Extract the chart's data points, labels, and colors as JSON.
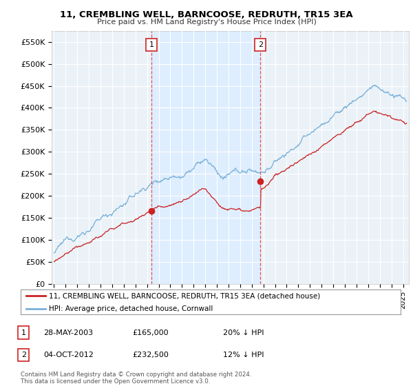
{
  "title": "11, CREMBLING WELL, BARNCOOSE, REDRUTH, TR15 3EA",
  "subtitle": "Price paid vs. HM Land Registry's House Price Index (HPI)",
  "ylabel_ticks": [
    "£0",
    "£50K",
    "£100K",
    "£150K",
    "£200K",
    "£250K",
    "£300K",
    "£350K",
    "£400K",
    "£450K",
    "£500K",
    "£550K"
  ],
  "ytick_values": [
    0,
    50000,
    100000,
    150000,
    200000,
    250000,
    300000,
    350000,
    400000,
    450000,
    500000,
    550000
  ],
  "ylim": [
    0,
    575000
  ],
  "xlim_start": 1994.8,
  "xlim_end": 2025.5,
  "hpi_color": "#7ab0d8",
  "price_color": "#cc2222",
  "vline_color": "#dd4444",
  "shade_color": "#ddeeff",
  "transaction1_x": 2003.4,
  "transaction1_y": 165000,
  "transaction1_label": "1",
  "transaction2_x": 2012.75,
  "transaction2_y": 232500,
  "transaction2_label": "2",
  "legend_line1": "11, CREMBLING WELL, BARNCOOSE, REDRUTH, TR15 3EA (detached house)",
  "legend_line2": "HPI: Average price, detached house, Cornwall",
  "table_row1_num": "1",
  "table_row1_date": "28-MAY-2003",
  "table_row1_price": "£165,000",
  "table_row1_hpi": "20% ↓ HPI",
  "table_row2_num": "2",
  "table_row2_date": "04-OCT-2012",
  "table_row2_price": "£232,500",
  "table_row2_hpi": "12% ↓ HPI",
  "footnote": "Contains HM Land Registry data © Crown copyright and database right 2024.\nThis data is licensed under the Open Government Licence v3.0.",
  "bg_color": "#ffffff",
  "plot_bg_color": "#eaf2f8",
  "grid_color": "#ffffff"
}
